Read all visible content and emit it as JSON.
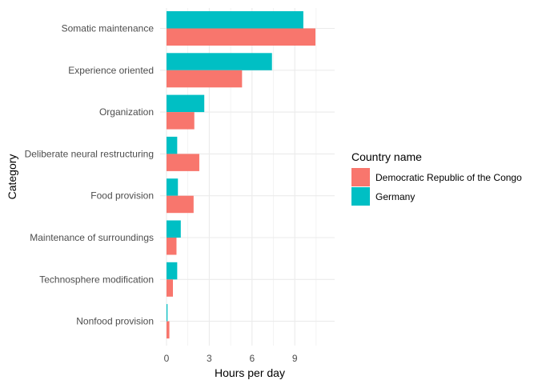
{
  "chart_data": {
    "type": "bar",
    "orientation": "horizontal",
    "title": "",
    "xlabel": "Hours per day",
    "ylabel": "Category",
    "xlim": [
      0,
      11
    ],
    "xticks": [
      0,
      3,
      6,
      9
    ],
    "grid": true,
    "legend_position": "right",
    "legend_title": "Country name",
    "categories": [
      "Somatic maintenance",
      "Experience oriented",
      "Organization",
      "Deliberate neural restructuring",
      "Food provision",
      "Maintenance of surroundings",
      "Technosphere modification",
      "Nonfood provision"
    ],
    "series": [
      {
        "name": "Democratic Republic of the Congo",
        "color": "#F8766D",
        "values": [
          10.45,
          5.3,
          1.95,
          2.3,
          1.9,
          0.7,
          0.45,
          0.2
        ]
      },
      {
        "name": "Germany",
        "color": "#00BFC4",
        "values": [
          9.6,
          7.4,
          2.65,
          0.75,
          0.8,
          1.0,
          0.75,
          0.07
        ]
      }
    ]
  }
}
